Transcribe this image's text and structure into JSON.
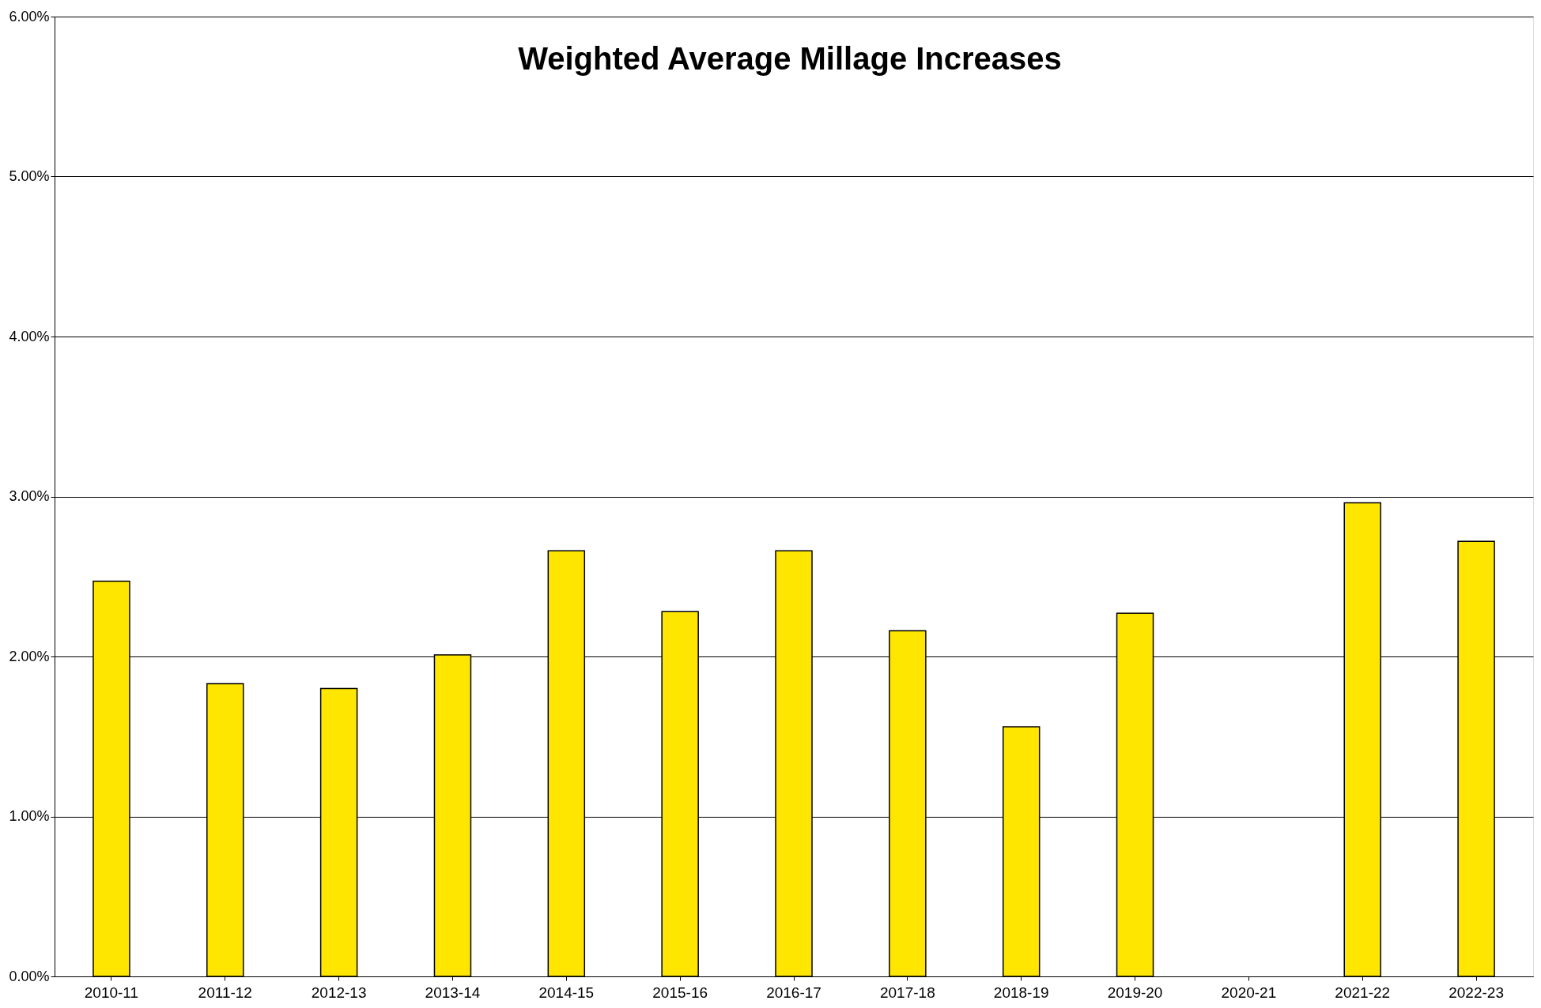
{
  "chart_data": {
    "type": "bar",
    "title": "Weighted Average Millage Increases",
    "categories": [
      "2010-11",
      "2011-12",
      "2012-13",
      "2013-14",
      "2014-15",
      "2015-16",
      "2016-17",
      "2017-18",
      "2018-19",
      "2019-20",
      "2020-21",
      "2021-22",
      "2022-23"
    ],
    "values": [
      2.47,
      1.83,
      1.8,
      2.01,
      2.66,
      2.28,
      2.66,
      2.16,
      1.56,
      2.27,
      null,
      2.96,
      2.72
    ],
    "color": "#ffe600",
    "ylim": [
      0,
      6
    ],
    "yticks": [
      {
        "value": 0,
        "label": "0.00%"
      },
      {
        "value": 1,
        "label": "1.00%"
      },
      {
        "value": 2,
        "label": "2.00%"
      },
      {
        "value": 3,
        "label": "3.00%"
      },
      {
        "value": 4,
        "label": "4.00%"
      },
      {
        "value": 5,
        "label": "5.00%"
      },
      {
        "value": 6,
        "label": "6.00%"
      }
    ],
    "grid": "y"
  }
}
